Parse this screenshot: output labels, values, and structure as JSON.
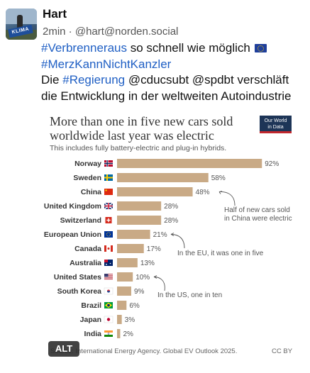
{
  "post": {
    "display_name": "Hart",
    "meta": "2min · @hart@norden.social",
    "avatar_badge": "KLIMA",
    "text_lines": [
      {
        "hashtag": "#Verbrenneraus",
        "rest": " so schnell wie möglich"
      },
      {
        "hashtag": "#MerzKannNichtKanzler",
        "rest": ""
      },
      {
        "prefix": "Die ",
        "hashtag": "#Regierung",
        "rest": " @cducsubt @spdbt verschläft"
      },
      {
        "plain": "die Entwicklung in der weltweiten Autoindustrie"
      }
    ],
    "emoji_icon": "eu-flag-icon"
  },
  "attachment": {
    "title_line1": "More than one in five new cars sold",
    "title_line2": "worldwide last year was electric",
    "subtitle": "This includes fully battery-electric and plug-in hybrids.",
    "logo_line1": "Our World",
    "logo_line2": "in Data",
    "source": "Source: International Energy Agency. Global EV Outlook 2025.",
    "license": "CC BY",
    "alt_button": "ALT"
  },
  "chart_data": {
    "type": "bar",
    "orientation": "horizontal",
    "categories": [
      "Norway",
      "Sweden",
      "China",
      "United Kingdom",
      "Switzerland",
      "European Union",
      "Canada",
      "Australia",
      "United States",
      "South Korea",
      "Brazil",
      "Japan",
      "India"
    ],
    "values": [
      92,
      58,
      48,
      28,
      28,
      21,
      17,
      13,
      10,
      9,
      6,
      3,
      2
    ],
    "value_labels": [
      "92%",
      "58%",
      "48%",
      "28%",
      "28%",
      "21%",
      "17%",
      "13%",
      "10%",
      "9%",
      "6%",
      "3%",
      "2%"
    ],
    "bar_color": "#c9aa86",
    "xlim": [
      0,
      100
    ],
    "annotations": [
      {
        "text_lines": [
          "Half of new cars sold",
          "in China were electric"
        ],
        "target": "China"
      },
      {
        "text_lines": [
          "In the EU, it was one in five"
        ],
        "target": "European Union"
      },
      {
        "text_lines": [
          "In the US, one in ten"
        ],
        "target": "United States"
      }
    ]
  }
}
